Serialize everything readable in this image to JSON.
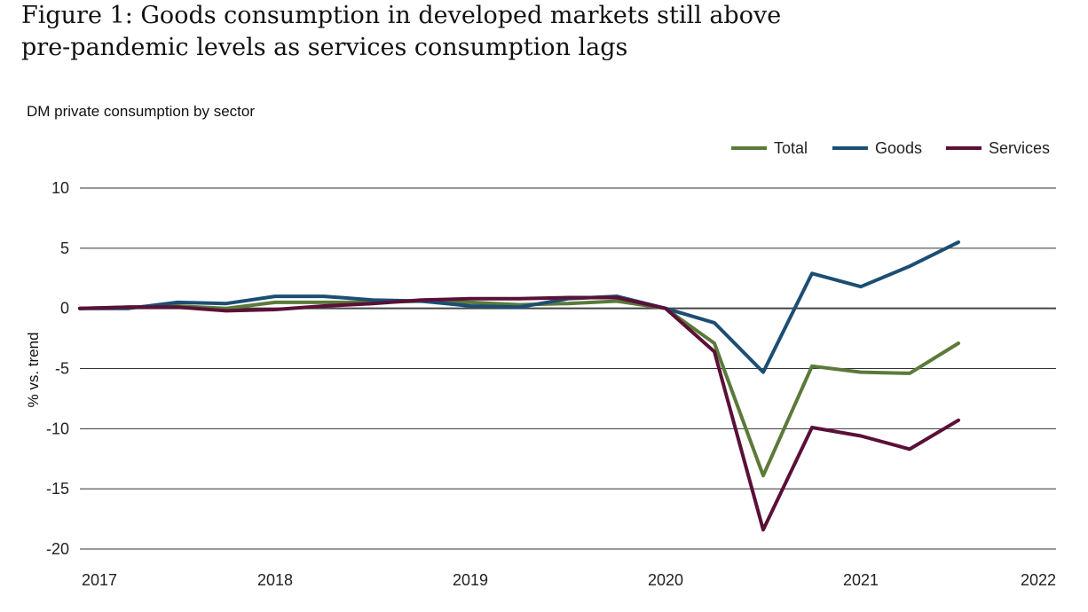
{
  "title_line1": "Figure 1: Goods consumption in developed markets still above",
  "title_line2": "pre-pandemic levels as services consumption lags",
  "subtitle": "DM private consumption by sector",
  "chart_data": {
    "type": "line",
    "title": "Figure 1: Goods consumption in developed markets still above pre-pandemic levels as services consumption lags",
    "subtitle": "DM private consumption by sector",
    "ylabel": "% vs. trend",
    "xlabel": "",
    "ylim": [
      -20,
      10
    ],
    "yticks": [
      10,
      5,
      0,
      -5,
      -10,
      -15,
      -20
    ],
    "xlim": [
      2017,
      2022
    ],
    "xticks": [
      "2017",
      "2018",
      "2019",
      "2020",
      "2021",
      "2022"
    ],
    "grid": "horizontal",
    "legend_position": "top-right",
    "x": [
      2017.0,
      2017.25,
      2017.5,
      2017.75,
      2018.0,
      2018.25,
      2018.5,
      2018.75,
      2019.0,
      2019.25,
      2019.5,
      2019.75,
      2020.0,
      2020.25,
      2020.5,
      2020.75,
      2021.0,
      2021.25,
      2021.5
    ],
    "series": [
      {
        "name": "Total",
        "color": "#5b7a3a",
        "values": [
          0.0,
          0.1,
          0.2,
          0.0,
          0.5,
          0.5,
          0.5,
          0.6,
          0.5,
          0.3,
          0.4,
          0.6,
          0.0,
          -2.9,
          -13.9,
          -4.8,
          -5.3,
          -5.4,
          -2.9
        ]
      },
      {
        "name": "Goods",
        "color": "#1c4e73",
        "values": [
          0.0,
          0.0,
          0.5,
          0.4,
          1.0,
          1.0,
          0.7,
          0.6,
          0.2,
          0.1,
          0.8,
          1.0,
          0.0,
          -1.2,
          -5.3,
          2.9,
          1.8,
          3.5,
          5.5
        ]
      },
      {
        "name": "Services",
        "color": "#5a1037",
        "values": [
          0.0,
          0.1,
          0.1,
          -0.2,
          -0.1,
          0.2,
          0.4,
          0.7,
          0.8,
          0.8,
          0.9,
          0.9,
          0.0,
          -3.6,
          -18.4,
          -9.9,
          -10.6,
          -11.7,
          -9.3
        ]
      }
    ]
  }
}
